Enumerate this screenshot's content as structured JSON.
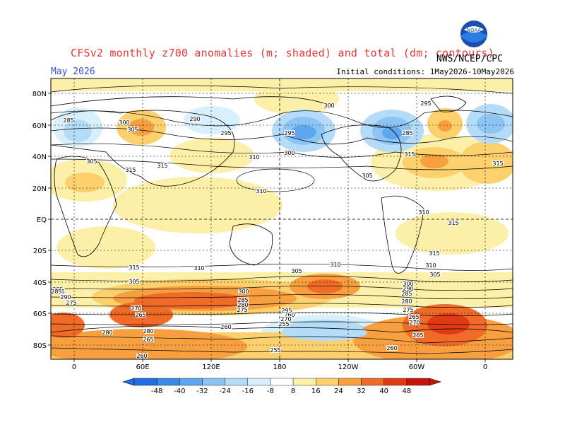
{
  "header": {
    "title": "CFSv2 monthly z700 anomalies (m; shaded) and total (dm; contours)",
    "valid_month": "May 2026",
    "initial_conditions": "Initial conditions: 1May2026-10May2026",
    "agency": "NWS/NCEP/CPC",
    "logo_text": "NOAA"
  },
  "map": {
    "lat_labels": [
      "80N",
      "60N",
      "40N",
      "20N",
      "EQ",
      "20S",
      "40S",
      "60S",
      "80S"
    ],
    "lon_labels": [
      "0",
      "60E",
      "120E",
      "180",
      "120W",
      "60W",
      "0"
    ],
    "contour_labels": [
      "285",
      "300",
      "305",
      "290",
      "295",
      "300",
      "295",
      "285",
      "295",
      "305",
      "300",
      "310",
      "315",
      "315",
      "310",
      "305",
      "310",
      "315",
      "315",
      "315",
      "315",
      "310",
      "315",
      "310",
      "305",
      "310",
      "305",
      "300",
      "305",
      "285",
      "290",
      "295",
      "300",
      "285",
      "280",
      "275",
      "270",
      "265",
      "260",
      "255",
      "260",
      "265",
      "270",
      "275",
      "280",
      "285",
      "290",
      "295",
      "260",
      "265",
      "275",
      "280",
      "285",
      "255",
      "260",
      "265",
      "270",
      "280"
    ]
  },
  "colorbar": {
    "ticks": [
      "-48",
      "-40",
      "-32",
      "-24",
      "-16",
      "-8",
      "8",
      "16",
      "24",
      "32",
      "40",
      "48"
    ],
    "colors": [
      "#1e6fe0",
      "#3c8ae8",
      "#5ea6f0",
      "#8cc4f4",
      "#b4dcf8",
      "#d8f0fc",
      "#ffffff",
      "#fcefa8",
      "#fcd06c",
      "#f8a040",
      "#f06a28",
      "#e03a14",
      "#c81408"
    ]
  }
}
